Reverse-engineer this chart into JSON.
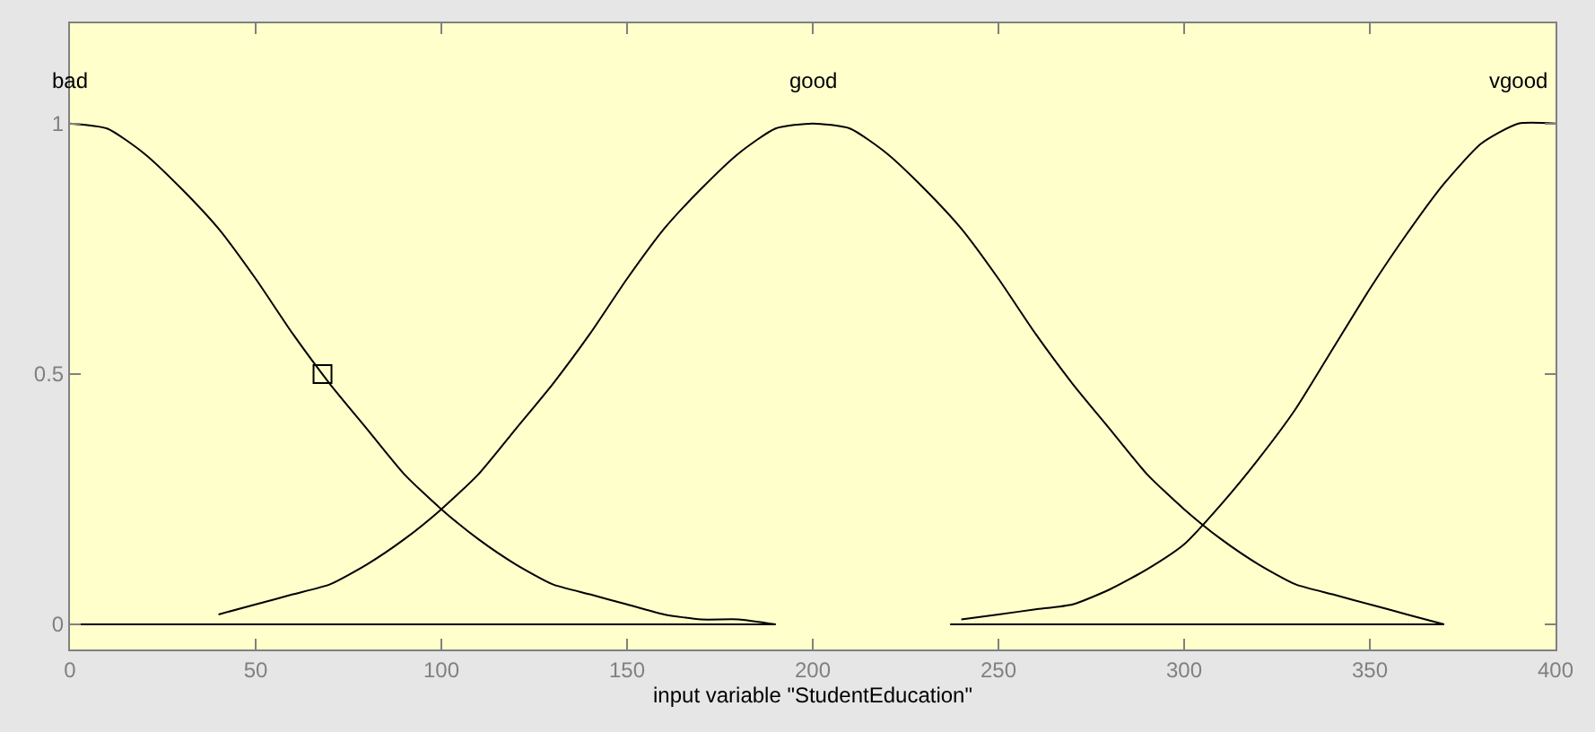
{
  "chart_data": {
    "type": "line",
    "xlabel": "input variable \"StudentEducation\"",
    "xlim": [
      0,
      400
    ],
    "xticks": [
      0,
      50,
      100,
      150,
      200,
      250,
      300,
      350,
      400
    ],
    "ylim": [
      -0.05,
      1.2
    ],
    "yticks": [
      0,
      0.5,
      1
    ],
    "grid": false,
    "legend": false,
    "marker": "none",
    "line_style": "solid",
    "series": [
      {
        "name": "bad",
        "color": "#000000",
        "x": [
          0,
          10,
          20,
          30,
          40,
          50,
          60,
          70,
          80,
          90,
          100,
          110,
          120,
          130,
          140,
          150,
          160,
          170,
          180,
          190
        ],
        "values": [
          1,
          0.99,
          0.94,
          0.87,
          0.79,
          0.69,
          0.58,
          0.48,
          0.39,
          0.3,
          0.23,
          0.17,
          0.12,
          0.08,
          0.06,
          0.04,
          0.02,
          0.01,
          0.01,
          0
        ]
      },
      {
        "name": "good",
        "color": "#000000",
        "x": [
          40,
          50,
          60,
          70,
          80,
          90,
          100,
          110,
          120,
          130,
          140,
          150,
          160,
          170,
          180,
          190,
          200,
          210,
          220,
          230,
          240,
          250,
          260,
          270,
          280,
          290,
          300,
          310,
          320,
          330,
          340,
          350,
          360,
          370
        ],
        "values": [
          0.02,
          0.04,
          0.06,
          0.08,
          0.12,
          0.17,
          0.23,
          0.3,
          0.39,
          0.48,
          0.58,
          0.69,
          0.79,
          0.87,
          0.94,
          0.99,
          1,
          0.99,
          0.94,
          0.87,
          0.79,
          0.69,
          0.58,
          0.48,
          0.39,
          0.3,
          0.23,
          0.17,
          0.12,
          0.08,
          0.06,
          0.04,
          0.02,
          0
        ]
      },
      {
        "name": "vgood",
        "color": "#000000",
        "x": [
          240,
          250,
          260,
          270,
          280,
          290,
          300,
          310,
          320,
          330,
          340,
          350,
          360,
          370,
          380,
          390,
          400
        ],
        "values": [
          0.01,
          0.02,
          0.03,
          0.04,
          0.07,
          0.11,
          0.16,
          0.24,
          0.33,
          0.43,
          0.55,
          0.67,
          0.78,
          0.88,
          0.96,
          1,
          1
        ]
      },
      {
        "color": "#000000",
        "x": [
          0,
          190
        ],
        "values": [
          0,
          0
        ]
      },
      {
        "color": "#000000",
        "x": [
          237,
          370
        ],
        "values": [
          0,
          0
        ]
      },
      {
        "type": "scatter",
        "marker": "square",
        "color": "#000000",
        "x": [
          68
        ],
        "values": [
          0.5
        ]
      }
    ]
  }
}
